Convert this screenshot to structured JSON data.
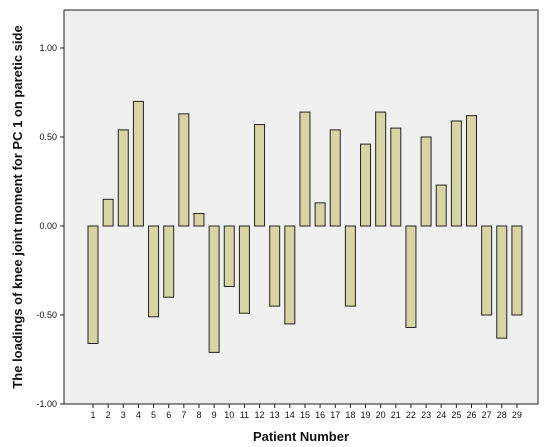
{
  "chart_data": {
    "type": "bar",
    "xlabel": "Patient Number",
    "ylabel": "The loadings of knee joint moment for PC 1 on paretic side",
    "ylim": [
      -1.0,
      1.0
    ],
    "yticks": [
      1.0,
      0.5,
      0.0,
      -0.5,
      -1.0
    ],
    "ytick_labels": [
      "1.00",
      "0.50",
      "0.00",
      "-0.50",
      "-1.00"
    ],
    "grid": false,
    "categories": [
      "1",
      "2",
      "3",
      "4",
      "5",
      "6",
      "7",
      "8",
      "9",
      "10",
      "11",
      "12",
      "13",
      "14",
      "15",
      "16",
      "17",
      "18",
      "19",
      "20",
      "21",
      "22",
      "23",
      "24",
      "25",
      "26",
      "27",
      "28",
      "29"
    ],
    "values": [
      -0.66,
      0.15,
      0.54,
      0.7,
      -0.51,
      -0.4,
      0.63,
      0.07,
      -0.71,
      -0.34,
      -0.49,
      0.57,
      -0.45,
      -0.55,
      0.64,
      0.13,
      0.54,
      -0.45,
      0.46,
      0.64,
      0.55,
      -0.57,
      0.5,
      0.23,
      0.59,
      0.62,
      -0.5,
      -0.63,
      -0.5
    ],
    "colors": {
      "plot_background": "#f0f0f0",
      "bar_fill": "#d8d4a4",
      "bar_stroke": "#222222",
      "axis": "#222222"
    }
  }
}
